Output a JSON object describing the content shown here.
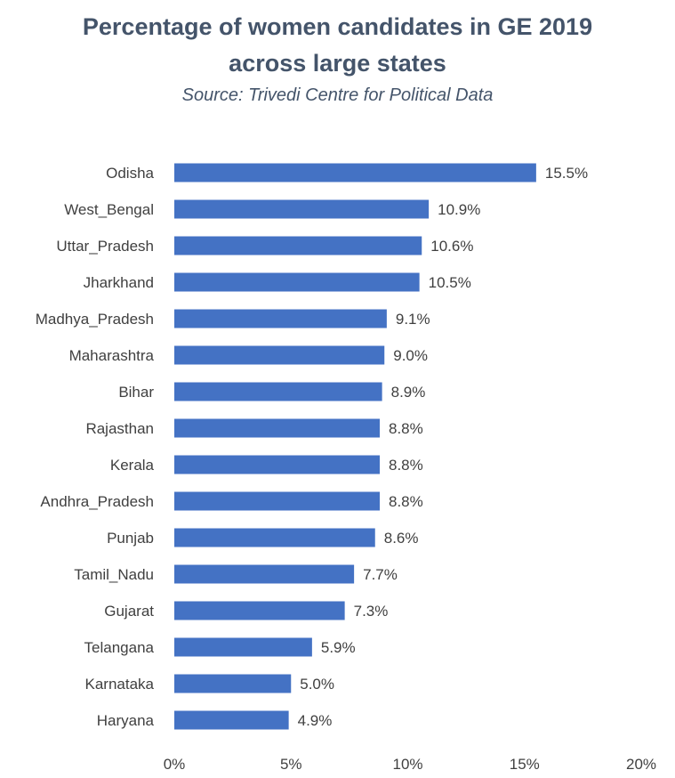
{
  "chart_data": {
    "type": "bar",
    "orientation": "horizontal",
    "title": "Percentage of women candidates in GE 2019 across large states",
    "subtitle": "Source: Trivedi Centre for Political Data",
    "categories": [
      "Odisha",
      "West_Bengal",
      "Uttar_Pradesh",
      "Jharkhand",
      "Madhya_Pradesh",
      "Maharashtra",
      "Bihar",
      "Rajasthan",
      "Kerala",
      "Andhra_Pradesh",
      "Punjab",
      "Tamil_Nadu",
      "Gujarat",
      "Telangana",
      "Karnataka",
      "Haryana"
    ],
    "values": [
      15.5,
      10.9,
      10.6,
      10.5,
      9.1,
      9.0,
      8.9,
      8.8,
      8.8,
      8.8,
      8.6,
      7.7,
      7.3,
      5.9,
      5.0,
      4.9
    ],
    "data_labels": [
      "15.5%",
      "10.9%",
      "10.6%",
      "10.5%",
      "9.1%",
      "9.0%",
      "8.9%",
      "8.8%",
      "8.8%",
      "8.8%",
      "8.6%",
      "7.7%",
      "7.3%",
      "5.9%",
      "5.0%",
      "4.9%"
    ],
    "xlim": [
      0,
      20
    ],
    "x_ticks": [
      "0%",
      "5%",
      "10%",
      "15%",
      "20%"
    ],
    "grid": false,
    "legend": "none",
    "bar_color": "#4472c4"
  }
}
